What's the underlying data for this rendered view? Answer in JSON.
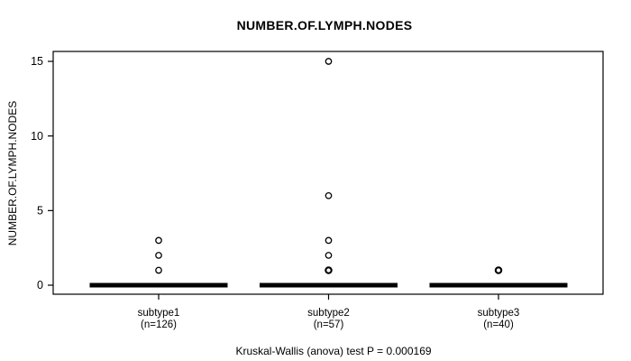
{
  "chart_data": {
    "type": "boxplot",
    "title": "NUMBER.OF.LYMPH.NODES",
    "ylabel": "NUMBER.OF.LYMPH.NODES",
    "caption": "Kruskal-Wallis (anova) test P = 0.000169",
    "test_name": "Kruskal-Wallis (anova) test",
    "p_value": "0.000169",
    "ylim": [
      0,
      15
    ],
    "yticks": [
      0,
      5,
      10,
      15
    ],
    "grid": false,
    "legend": "none",
    "colors": {
      "line": "#000000",
      "background": "#ffffff"
    },
    "groups": [
      {
        "label": "subtype1",
        "n": 126,
        "n_label": "(n=126)",
        "median": 0,
        "box_low": 0,
        "box_high": 0,
        "whisker_low": 0,
        "whisker_high": 0,
        "outliers": [
          1,
          2,
          3
        ],
        "overplotted_outliers": []
      },
      {
        "label": "subtype2",
        "n": 57,
        "n_label": "(n=57)",
        "median": 0,
        "box_low": 0,
        "box_high": 0,
        "whisker_low": 0,
        "whisker_high": 0,
        "outliers": [
          1,
          2,
          3,
          6,
          15
        ],
        "overplotted_outliers": [
          1
        ]
      },
      {
        "label": "subtype3",
        "n": 40,
        "n_label": "(n=40)",
        "median": 0,
        "box_low": 0,
        "box_high": 0,
        "whisker_low": 0,
        "whisker_high": 0,
        "outliers": [
          1
        ],
        "overplotted_outliers": [
          1
        ]
      }
    ]
  }
}
